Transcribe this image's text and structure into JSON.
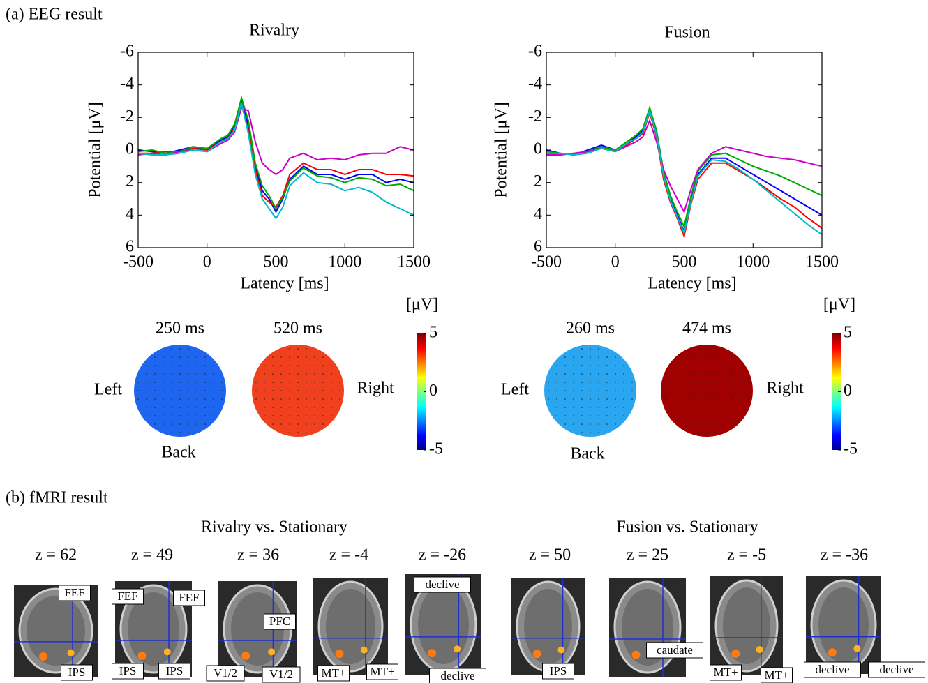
{
  "panel_a_label": "(a) EEG result",
  "chart_data": [
    {
      "type": "line",
      "title": "Rivalry",
      "x_label": "Latency [ms]",
      "y_label": "Potential [μV]",
      "x": [
        -500,
        -400,
        -300,
        -200,
        -100,
        0,
        100,
        150,
        200,
        250,
        300,
        350,
        400,
        450,
        500,
        550,
        600,
        700,
        800,
        900,
        1000,
        1100,
        1200,
        1300,
        1400,
        1500
      ],
      "xlim": [
        -500,
        1500
      ],
      "xticks": [
        -500,
        0,
        500,
        1000,
        1500
      ],
      "ylim": [
        -6,
        6
      ],
      "yticks": [
        -6,
        -4,
        -2,
        0,
        2,
        4,
        6
      ],
      "y_inverted": true,
      "series": [
        {
          "color": "#0000ff",
          "values": [
            0,
            0.1,
            0.2,
            0,
            -0.2,
            0,
            -0.6,
            -0.8,
            -1.5,
            -3,
            -1.5,
            1,
            2.5,
            3,
            3.8,
            3,
            1.8,
            1,
            1.5,
            1.5,
            1.8,
            1.5,
            1.5,
            2,
            1.8,
            2
          ]
        },
        {
          "color": "#ff0000",
          "values": [
            0.2,
            0.2,
            0.1,
            0.1,
            -0.1,
            0,
            -0.5,
            -0.7,
            -1.3,
            -2.8,
            -1.2,
            1.2,
            2.8,
            3.2,
            3.5,
            2.8,
            1.5,
            0.8,
            1.2,
            1.2,
            1.5,
            1.2,
            1.2,
            1.5,
            1.5,
            1.6
          ]
        },
        {
          "color": "#00aa00",
          "values": [
            0.1,
            0,
            0.2,
            0.1,
            -0.2,
            -0.1,
            -0.7,
            -0.9,
            -1.6,
            -3.2,
            -1.8,
            0.8,
            2.2,
            2.8,
            3.6,
            2.9,
            1.9,
            1.1,
            1.6,
            1.7,
            2,
            1.7,
            1.8,
            2.2,
            2.1,
            2.5
          ]
        },
        {
          "color": "#cc00cc",
          "values": [
            0.3,
            0.2,
            0.3,
            0.1,
            0,
            0.1,
            -0.4,
            -0.6,
            -1.1,
            -2.6,
            -2.4,
            -0.5,
            0.8,
            1.2,
            1.5,
            1.2,
            0.5,
            0.2,
            0.6,
            0.5,
            0.6,
            0.3,
            0.2,
            0.2,
            -0.2,
            0
          ]
        },
        {
          "color": "#00bbcc",
          "values": [
            0.2,
            0.3,
            0.3,
            0.2,
            0,
            0.1,
            -0.5,
            -0.7,
            -1.2,
            -2.9,
            -1,
            1.5,
            3,
            3.6,
            4.2,
            3.5,
            2.2,
            1.4,
            2,
            2.1,
            2.5,
            2.3,
            2.6,
            3.2,
            3.6,
            4
          ]
        }
      ],
      "maps": [
        {
          "label": "250 ms",
          "color": "#1e66f0"
        },
        {
          "label": "520 ms",
          "color": "#f0401e"
        }
      ],
      "map_labels": {
        "left": "Left",
        "right": "Right",
        "back": "Back"
      },
      "colorbar": {
        "unit": "[μV]",
        "lim": [
          -5,
          5
        ],
        "ticks": [
          5,
          0,
          -5
        ]
      }
    },
    {
      "type": "line",
      "title": "Fusion",
      "x_label": "Latency [ms]",
      "y_label": "Potential [μV]",
      "x": [
        -500,
        -400,
        -300,
        -200,
        -100,
        0,
        100,
        150,
        200,
        250,
        300,
        350,
        400,
        450,
        500,
        550,
        600,
        700,
        800,
        900,
        1000,
        1100,
        1200,
        1300,
        1400,
        1500
      ],
      "xlim": [
        -500,
        1500
      ],
      "xticks": [
        -500,
        0,
        500,
        1000,
        1500
      ],
      "ylim": [
        -6,
        6
      ],
      "yticks": [
        -6,
        -4,
        -2,
        0,
        2,
        4,
        6
      ],
      "y_inverted": true,
      "series": [
        {
          "color": "#0000ff",
          "values": [
            0,
            0.2,
            0.3,
            0,
            -0.3,
            0,
            -0.5,
            -0.8,
            -1.2,
            -2.5,
            -1,
            1.5,
            3,
            4,
            5,
            3,
            1.5,
            0.5,
            0.5,
            1,
            1.5,
            2,
            2.5,
            3,
            3.5,
            4
          ]
        },
        {
          "color": "#ff0000",
          "values": [
            0.2,
            0.3,
            0.2,
            0.1,
            -0.2,
            0.1,
            -0.4,
            -0.7,
            -1,
            -2.3,
            -0.8,
            1.8,
            3.2,
            4.2,
            5.3,
            3.3,
            1.8,
            0.8,
            0.8,
            1.3,
            1.8,
            2.4,
            3,
            3.5,
            4.2,
            4.8
          ]
        },
        {
          "color": "#00aa00",
          "values": [
            0.1,
            0.2,
            0.3,
            0.1,
            -0.2,
            0,
            -0.6,
            -0.9,
            -1.3,
            -2.6,
            -1.2,
            1.3,
            2.8,
            3.8,
            4.7,
            2.8,
            1.3,
            0.3,
            0.2,
            0.6,
            1,
            1.3,
            1.6,
            2,
            2.4,
            2.8
          ]
        },
        {
          "color": "#cc00cc",
          "values": [
            0.3,
            0.3,
            0.2,
            0.1,
            -0.1,
            0.1,
            -0.3,
            -0.5,
            -0.8,
            -1.8,
            -0.5,
            1.2,
            2.2,
            3,
            3.8,
            2.4,
            1.2,
            0.2,
            -0.2,
            0,
            0.2,
            0.4,
            0.5,
            0.6,
            0.8,
            1
          ]
        },
        {
          "color": "#00bbcc",
          "values": [
            0.2,
            0.2,
            0.3,
            0.2,
            -0.1,
            0.1,
            -0.5,
            -0.7,
            -1.1,
            -2.4,
            -0.9,
            1.6,
            3.1,
            4.1,
            5.1,
            3.2,
            1.6,
            0.6,
            0.7,
            1.2,
            1.8,
            2.5,
            3.2,
            3.9,
            4.6,
            5.2
          ]
        }
      ],
      "maps": [
        {
          "label": "260 ms",
          "color": "#2aa6f0"
        },
        {
          "label": "474 ms",
          "color": "#a00000"
        }
      ],
      "map_labels": {
        "left": "Left",
        "right": "Right",
        "back": "Back"
      },
      "colorbar": {
        "unit": "[μV]",
        "lim": [
          -5,
          5
        ],
        "ticks": [
          5,
          0,
          -5
        ]
      }
    }
  ],
  "fmri": {
    "label": "(b) fMRI result",
    "groups": [
      {
        "title": "Rivalry vs. Stationary",
        "slices": [
          {
            "z": "z = 62",
            "tags": [
              "FEF",
              "IPS"
            ]
          },
          {
            "z": "z = 49",
            "tags": [
              "FEF",
              "FEF",
              "IPS",
              "IPS"
            ]
          },
          {
            "z": "z = 36",
            "tags": [
              "PFC",
              "V1/2",
              "V1/2"
            ]
          },
          {
            "z": "z = -4",
            "tags": [
              "MT+",
              "MT+"
            ]
          },
          {
            "z": "z = -26",
            "tags": [
              "declive",
              "declive"
            ]
          }
        ]
      },
      {
        "title": "Fusion vs. Stationary",
        "slices": [
          {
            "z": "z = 50",
            "tags": [
              "IPS"
            ]
          },
          {
            "z": "z = 25",
            "tags": [
              "caudate"
            ]
          },
          {
            "z": "z = -5",
            "tags": [
              "MT+",
              "MT+"
            ]
          },
          {
            "z": "z = -36",
            "tags": [
              "declive",
              "declive"
            ]
          }
        ]
      }
    ]
  }
}
